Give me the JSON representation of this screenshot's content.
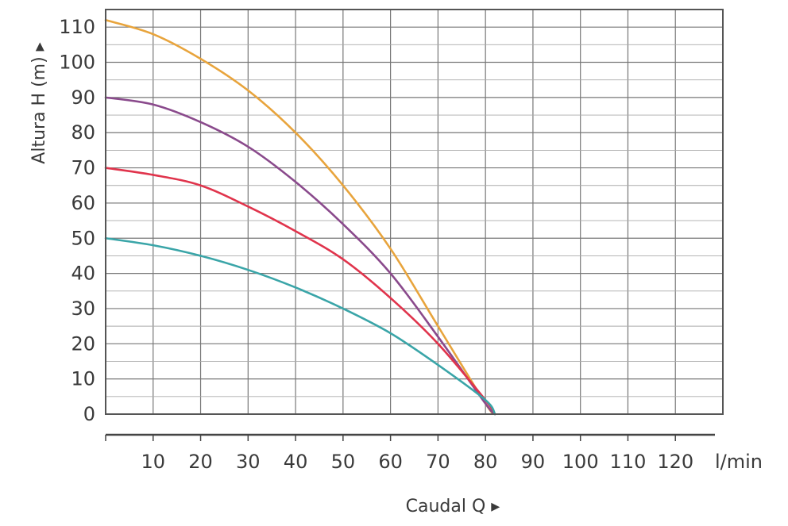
{
  "chart_data": {
    "type": "line",
    "title": "",
    "xlabel": "Caudal Q ▸",
    "ylabel": "Altura H (m) ▸",
    "x_unit": "l/min",
    "xlim": [
      0,
      130
    ],
    "ylim": [
      0,
      115
    ],
    "x_ticks": [
      "10",
      "20",
      "30",
      "40",
      "50",
      "60",
      "70",
      "80",
      "90",
      "100",
      "110",
      "120"
    ],
    "y_ticks": [
      "0",
      "10",
      "20",
      "30",
      "40",
      "50",
      "60",
      "70",
      "80",
      "90",
      "100",
      "110"
    ],
    "grid": true,
    "legend": "none",
    "series": [
      {
        "color": "#e8a43c",
        "x": [
          0,
          10,
          20,
          30,
          40,
          50,
          60,
          70,
          80,
          82
        ],
        "y": [
          112,
          108,
          101,
          92,
          80,
          65,
          47,
          25,
          3,
          0
        ]
      },
      {
        "color": "#8a4a8c",
        "x": [
          0,
          10,
          20,
          30,
          40,
          50,
          60,
          70,
          80,
          82
        ],
        "y": [
          90,
          88,
          83,
          76,
          66,
          54,
          40,
          22,
          3,
          0
        ]
      },
      {
        "color": "#e0344c",
        "x": [
          0,
          10,
          20,
          30,
          40,
          50,
          60,
          70,
          80,
          82
        ],
        "y": [
          70,
          68,
          65,
          59,
          52,
          44,
          33,
          20,
          4,
          0
        ]
      },
      {
        "color": "#3aa5a8",
        "x": [
          0,
          10,
          20,
          30,
          40,
          50,
          60,
          70,
          80,
          82
        ],
        "y": [
          50,
          48,
          45,
          41,
          36,
          30,
          23,
          14,
          4,
          0
        ]
      }
    ]
  }
}
